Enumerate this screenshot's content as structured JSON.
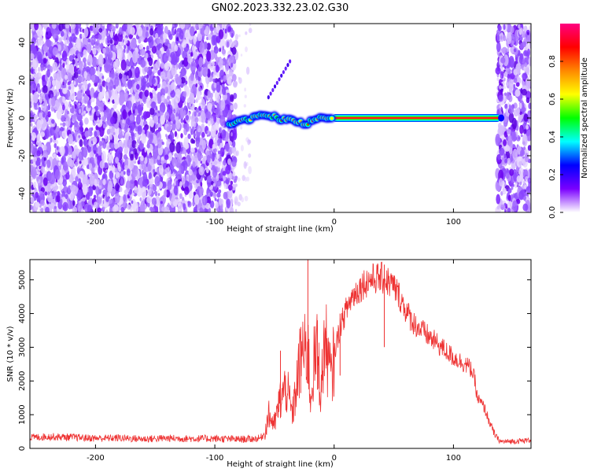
{
  "figure_title": "GN02.2023.332.23.02.G30",
  "chart_data": [
    {
      "type": "heatmap",
      "title": "GN02.2023.332.23.02.G30",
      "xlabel": "Height of straight line (km)",
      "ylabel": "Frequency (Hz)",
      "xlim": [
        -255,
        165
      ],
      "ylim": [
        -50,
        50
      ],
      "x_ticks": [
        -200,
        -100,
        0,
        100
      ],
      "x_tick_labels": [
        "-200",
        "-100",
        "0",
        "100"
      ],
      "y_ticks": [
        40,
        20,
        0,
        -20,
        -40
      ],
      "y_tick_labels": [
        "40",
        "20",
        "0",
        "-20",
        "-40"
      ],
      "noise_regions": [
        {
          "x_range": [
            -255,
            -82
          ],
          "description": "broadband noise"
        },
        {
          "x_range": [
            -82,
            -70
          ],
          "description": "sparse faint noise"
        },
        {
          "x_range": [
            137,
            165
          ],
          "description": "broadband noise"
        }
      ],
      "signal_line": {
        "x_start": -88,
        "x_end": 140,
        "frequency": 0
      },
      "wavy_signal": [
        {
          "x": -88,
          "y": -3
        },
        {
          "x": -80,
          "y": -2
        },
        {
          "x": -72,
          "y": -1
        },
        {
          "x": -64,
          "y": 1
        },
        {
          "x": -56,
          "y": 2
        },
        {
          "x": -48,
          "y": 0
        },
        {
          "x": -40,
          "y": -1
        },
        {
          "x": -32,
          "y": -2
        },
        {
          "x": -24,
          "y": -3
        },
        {
          "x": -16,
          "y": -1
        },
        {
          "x": -8,
          "y": 0
        },
        {
          "x": 0,
          "y": 0
        }
      ],
      "tail_segment": {
        "x_start": -55,
        "x_end": -37,
        "y_start": 11,
        "y_end": 30
      },
      "colorbar": {
        "label": "Normalized spectral amplitude",
        "range": [
          0.0,
          1.0
        ],
        "ticks": [
          0.0,
          0.2,
          0.4,
          0.6,
          0.8
        ],
        "tick_labels": [
          "0.0",
          "0.2",
          "0.4",
          "0.6",
          "0.8"
        ],
        "colormap": [
          "#ffffff",
          "#7a00ff",
          "#0000ff",
          "#00ffff",
          "#00ff00",
          "#ffff00",
          "#ff8800",
          "#ff0000",
          "#ff0080"
        ]
      }
    },
    {
      "type": "line",
      "xlabel": "Height of straight line (km)",
      "ylabel": "SNR (10 * v/v)",
      "xlim": [
        -255,
        165
      ],
      "ylim": [
        0,
        5600
      ],
      "x_ticks": [
        -200,
        -100,
        0,
        100
      ],
      "x_tick_labels": [
        "-200",
        "-100",
        "0",
        "100"
      ],
      "y_ticks": [
        0,
        1000,
        2000,
        3000,
        4000,
        5000
      ],
      "y_tick_labels": [
        "0",
        "1000",
        "2000",
        "3000",
        "4000",
        "5000"
      ],
      "color": "#ee3333",
      "series": [
        {
          "name": "SNR",
          "x": [
            -255,
            -240,
            -220,
            -200,
            -180,
            -160,
            -140,
            -120,
            -100,
            -80,
            -70,
            -62,
            -58,
            -55,
            -50,
            -45,
            -40,
            -35,
            -30,
            -27,
            -24,
            -22,
            -20,
            -17,
            -14,
            -11,
            -8,
            -5,
            -2,
            0,
            5,
            10,
            15,
            20,
            25,
            30,
            35,
            40,
            45,
            50,
            55,
            60,
            65,
            70,
            75,
            80,
            85,
            90,
            95,
            100,
            105,
            110,
            115,
            118,
            120,
            123,
            126,
            130,
            134,
            138,
            140,
            145,
            150,
            155,
            160,
            165
          ],
          "y": [
            320,
            350,
            330,
            300,
            310,
            280,
            300,
            290,
            290,
            270,
            280,
            300,
            450,
            1000,
            700,
            1500,
            1800,
            1000,
            2200,
            3000,
            2700,
            3200,
            1400,
            2500,
            2900,
            1600,
            3300,
            2600,
            2000,
            2800,
            3600,
            4100,
            4500,
            4700,
            4900,
            5000,
            5050,
            5050,
            4950,
            4800,
            4500,
            4100,
            3800,
            3600,
            3450,
            3300,
            3150,
            3000,
            2850,
            2700,
            2600,
            2500,
            2350,
            2000,
            1500,
            1350,
            1200,
            800,
            450,
            250,
            200,
            200,
            210,
            220,
            230,
            250
          ],
          "spikes": [
            {
              "x": -45,
              "y": 2900
            },
            {
              "x": -28,
              "y": 3600
            },
            {
              "x": -22,
              "y": 5600
            },
            {
              "x": -14,
              "y": 3800
            },
            {
              "x": 5,
              "y": 4000
            },
            {
              "x": 42,
              "y": 5450
            }
          ]
        }
      ]
    }
  ]
}
